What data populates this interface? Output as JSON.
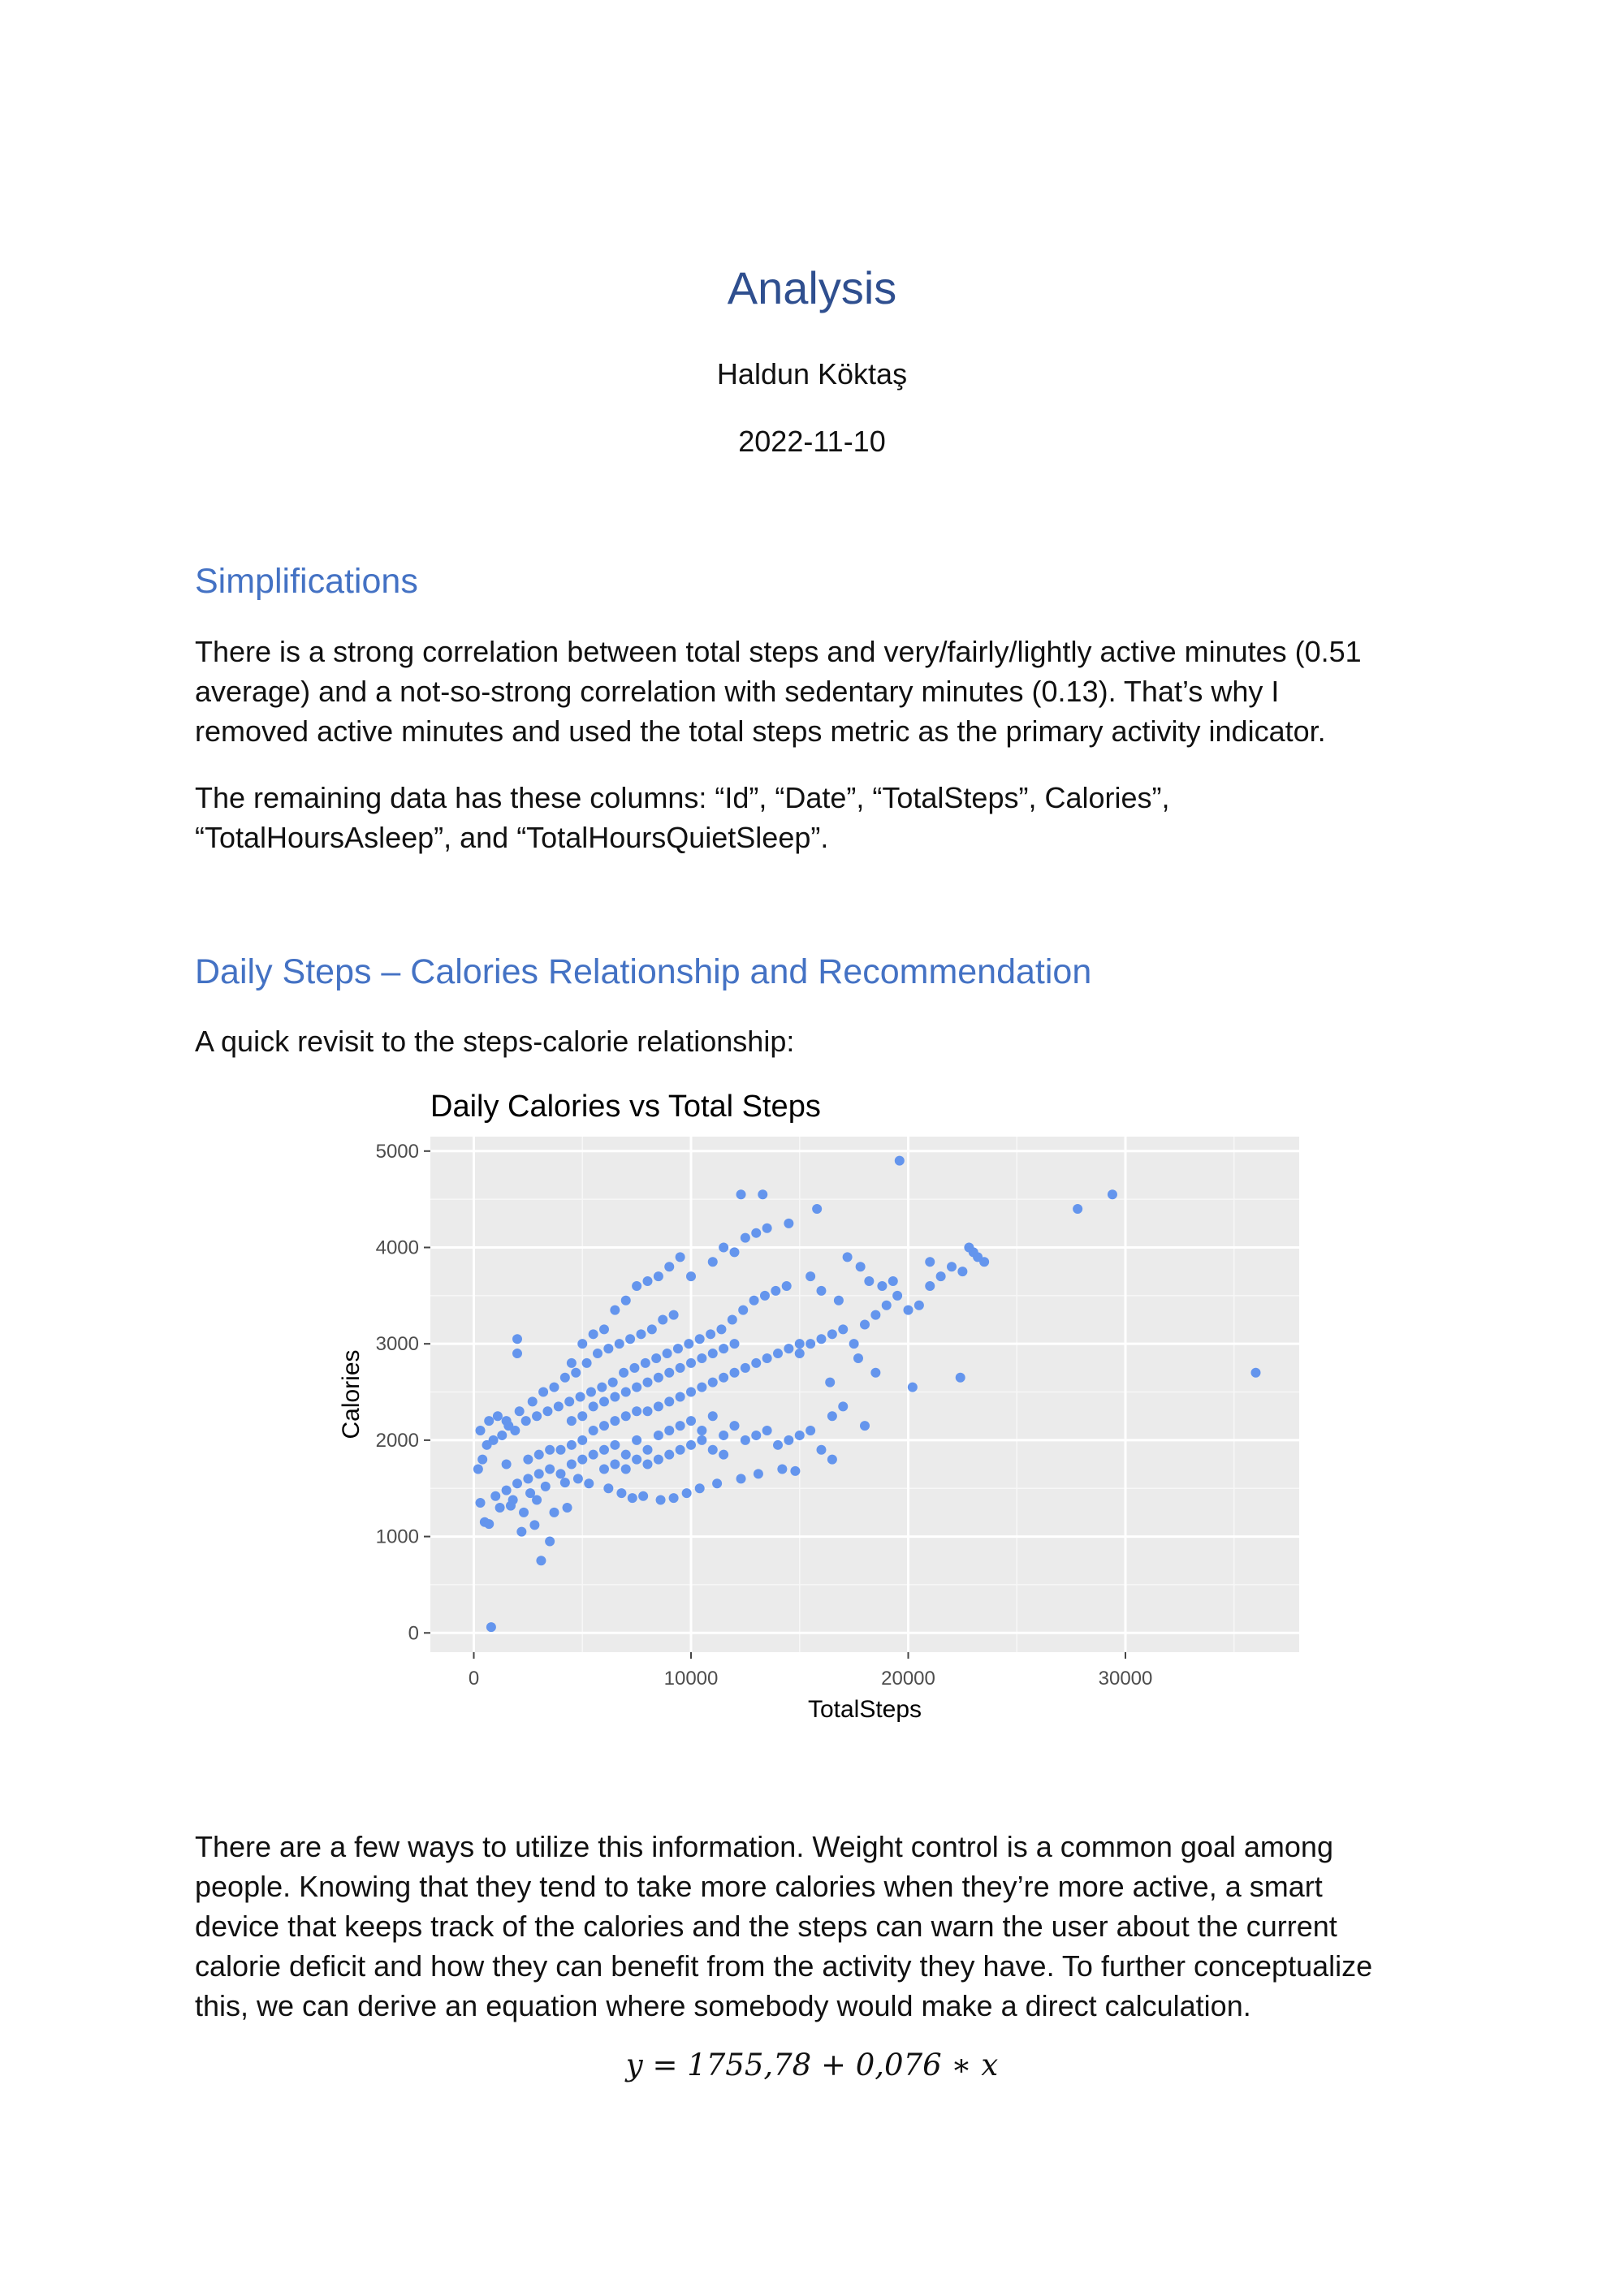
{
  "document": {
    "title": "Analysis",
    "author": "Haldun Köktaş",
    "date": "2022-11-10"
  },
  "section_simplifications": {
    "heading": "Simplifications",
    "para1_lines": [
      "There is a strong correlation between total steps and very/fairly/lightly active minutes (0.51",
      "average) and a not-so-strong correlation with sedentary minutes (0.13). That’s why I",
      "removed active minutes and used the total steps metric as the primary activity indicator."
    ],
    "para2_lines": [
      "The remaining data has these columns: “Id”, “Date”, “TotalSteps”, Calories”,",
      "“TotalHoursAsleep”, and “TotalHoursQuietSleep”."
    ]
  },
  "section_steps": {
    "heading": "Daily Steps – Calories Relationship and Recommendation",
    "intro": "A quick revisit to the steps-calorie relationship:",
    "para_lines": [
      "There are a few ways to utilize this information. Weight control is a common goal among",
      "people. Knowing that they tend to take more calories when they’re more active, a smart",
      "device that keeps track of the calories and the steps can warn the user about the current",
      "calorie deficit and how they can benefit from the activity they have. To further conceptualize",
      "this, we can derive an equation where somebody would make a direct calculation."
    ],
    "equation": "y = 1755,78 + 0,076 ∗ x"
  },
  "chart_data": {
    "type": "scatter",
    "title": "Daily Calories vs Total Steps",
    "xlabel": "TotalSteps",
    "ylabel": "Calories",
    "xlim": [
      -2000,
      38000
    ],
    "ylim": [
      -200,
      5150
    ],
    "xticks": [
      0,
      10000,
      20000,
      30000
    ],
    "yticks": [
      0,
      1000,
      2000,
      3000,
      4000,
      5000
    ],
    "grid": true,
    "point_color": "#6495ed",
    "panel_color": "#ebebeb",
    "points": [
      [
        800,
        60
      ],
      [
        3100,
        750
      ],
      [
        3500,
        950
      ],
      [
        2200,
        1050
      ],
      [
        2800,
        1120
      ],
      [
        500,
        1150
      ],
      [
        700,
        1130
      ],
      [
        300,
        1350
      ],
      [
        1000,
        1420
      ],
      [
        1500,
        1480
      ],
      [
        2000,
        1550
      ],
      [
        2500,
        1600
      ],
      [
        3000,
        1650
      ],
      [
        3500,
        1700
      ],
      [
        4000,
        1650
      ],
      [
        4500,
        1750
      ],
      [
        5000,
        1800
      ],
      [
        5500,
        1850
      ],
      [
        6000,
        1900
      ],
      [
        6500,
        1950
      ],
      [
        7000,
        1850
      ],
      [
        7500,
        2000
      ],
      [
        8000,
        1900
      ],
      [
        8500,
        2050
      ],
      [
        9000,
        2100
      ],
      [
        9500,
        2150
      ],
      [
        10000,
        2200
      ],
      [
        10500,
        2100
      ],
      [
        11000,
        2250
      ],
      [
        11500,
        2050
      ],
      [
        12000,
        2150
      ],
      [
        12500,
        2000
      ],
      [
        13000,
        2050
      ],
      [
        13500,
        2100
      ],
      [
        14000,
        1950
      ],
      [
        14500,
        2000
      ],
      [
        15000,
        2050
      ],
      [
        15500,
        2100
      ],
      [
        16000,
        1900
      ],
      [
        16500,
        1800
      ],
      [
        1200,
        1300
      ],
      [
        1800,
        1380
      ],
      [
        2600,
        1450
      ],
      [
        3300,
        1520
      ],
      [
        4200,
        1560
      ],
      [
        4800,
        1600
      ],
      [
        5300,
        1550
      ],
      [
        6200,
        1500
      ],
      [
        6800,
        1450
      ],
      [
        7300,
        1400
      ],
      [
        7800,
        1420
      ],
      [
        8600,
        1380
      ],
      [
        9200,
        1400
      ],
      [
        9800,
        1450
      ],
      [
        10400,
        1500
      ],
      [
        11200,
        1550
      ],
      [
        12300,
        1600
      ],
      [
        13100,
        1650
      ],
      [
        14200,
        1700
      ],
      [
        14800,
        1680
      ],
      [
        3700,
        1250
      ],
      [
        4300,
        1300
      ],
      [
        2900,
        1380
      ],
      [
        2300,
        1250
      ],
      [
        1700,
        1320
      ],
      [
        200,
        1700
      ],
      [
        400,
        1800
      ],
      [
        600,
        1950
      ],
      [
        900,
        2000
      ],
      [
        1300,
        2050
      ],
      [
        1600,
        2150
      ],
      [
        1900,
        2100
      ],
      [
        2400,
        2200
      ],
      [
        2900,
        2250
      ],
      [
        3400,
        2300
      ],
      [
        3900,
        2350
      ],
      [
        4400,
        2400
      ],
      [
        4900,
        2450
      ],
      [
        5400,
        2500
      ],
      [
        5900,
        2550
      ],
      [
        6400,
        2600
      ],
      [
        6900,
        2700
      ],
      [
        7400,
        2750
      ],
      [
        7900,
        2800
      ],
      [
        8400,
        2850
      ],
      [
        8900,
        2900
      ],
      [
        9400,
        2950
      ],
      [
        9900,
        3000
      ],
      [
        10400,
        3050
      ],
      [
        10900,
        3100
      ],
      [
        11400,
        3150
      ],
      [
        11900,
        3250
      ],
      [
        12400,
        3350
      ],
      [
        12900,
        3450
      ],
      [
        13400,
        3500
      ],
      [
        13900,
        3550
      ],
      [
        14400,
        3600
      ],
      [
        300,
        2100
      ],
      [
        700,
        2200
      ],
      [
        1100,
        2250
      ],
      [
        1500,
        2200
      ],
      [
        2100,
        2300
      ],
      [
        2700,
        2400
      ],
      [
        3200,
        2500
      ],
      [
        3700,
        2550
      ],
      [
        4200,
        2650
      ],
      [
        4700,
        2700
      ],
      [
        5200,
        2800
      ],
      [
        5700,
        2900
      ],
      [
        6200,
        2950
      ],
      [
        6700,
        3000
      ],
      [
        7200,
        3050
      ],
      [
        7700,
        3100
      ],
      [
        8200,
        3150
      ],
      [
        8700,
        3250
      ],
      [
        9200,
        3300
      ],
      [
        2000,
        2900
      ],
      [
        2000,
        3050
      ],
      [
        4500,
        2800
      ],
      [
        5000,
        3000
      ],
      [
        5500,
        3100
      ],
      [
        6000,
        3150
      ],
      [
        6500,
        3350
      ],
      [
        7000,
        3450
      ],
      [
        7500,
        3600
      ],
      [
        8000,
        3650
      ],
      [
        8500,
        3700
      ],
      [
        9000,
        3800
      ],
      [
        9500,
        3900
      ],
      [
        10000,
        3700
      ],
      [
        11000,
        3850
      ],
      [
        11500,
        4000
      ],
      [
        12000,
        3950
      ],
      [
        12500,
        4100
      ],
      [
        13000,
        4150
      ],
      [
        13500,
        4200
      ],
      [
        12300,
        4550
      ],
      [
        13300,
        4550
      ],
      [
        14500,
        4250
      ],
      [
        15800,
        4400
      ],
      [
        19600,
        4900
      ],
      [
        15000,
        2900
      ],
      [
        15500,
        3000
      ],
      [
        16000,
        3050
      ],
      [
        16500,
        3100
      ],
      [
        17000,
        3150
      ],
      [
        17500,
        3000
      ],
      [
        18000,
        3200
      ],
      [
        18500,
        3300
      ],
      [
        19000,
        3400
      ],
      [
        19500,
        3500
      ],
      [
        20000,
        3350
      ],
      [
        20500,
        3400
      ],
      [
        21000,
        3600
      ],
      [
        21500,
        3700
      ],
      [
        22000,
        3800
      ],
      [
        22500,
        3750
      ],
      [
        23000,
        3950
      ],
      [
        23500,
        3850
      ],
      [
        17200,
        3900
      ],
      [
        17800,
        3800
      ],
      [
        18200,
        3650
      ],
      [
        18800,
        3600
      ],
      [
        19300,
        3650
      ],
      [
        21000,
        3850
      ],
      [
        22800,
        4000
      ],
      [
        23200,
        3900
      ],
      [
        15500,
        3700
      ],
      [
        16000,
        3550
      ],
      [
        16800,
        3450
      ],
      [
        17000,
        2350
      ],
      [
        16500,
        2250
      ],
      [
        18000,
        2150
      ],
      [
        20200,
        2550
      ],
      [
        22400,
        2650
      ],
      [
        16400,
        2600
      ],
      [
        18500,
        2700
      ],
      [
        17700,
        2850
      ],
      [
        8000,
        2300
      ],
      [
        8500,
        2350
      ],
      [
        9000,
        2400
      ],
      [
        9500,
        2450
      ],
      [
        10000,
        2500
      ],
      [
        10500,
        2550
      ],
      [
        11000,
        2600
      ],
      [
        11500,
        2650
      ],
      [
        12000,
        2700
      ],
      [
        12500,
        2750
      ],
      [
        13000,
        2800
      ],
      [
        13500,
        2850
      ],
      [
        14000,
        2900
      ],
      [
        14500,
        2950
      ],
      [
        15000,
        3000
      ],
      [
        5000,
        2000
      ],
      [
        5500,
        2100
      ],
      [
        6000,
        2150
      ],
      [
        6500,
        2200
      ],
      [
        7000,
        2250
      ],
      [
        7500,
        2300
      ],
      [
        4000,
        1900
      ],
      [
        4500,
        1950
      ],
      [
        3000,
        1850
      ],
      [
        3500,
        1900
      ],
      [
        2500,
        1800
      ],
      [
        1500,
        1750
      ],
      [
        6000,
        1700
      ],
      [
        6500,
        1750
      ],
      [
        7000,
        1700
      ],
      [
        7500,
        1800
      ],
      [
        8000,
        1750
      ],
      [
        8500,
        1800
      ],
      [
        9000,
        1850
      ],
      [
        9500,
        1900
      ],
      [
        10000,
        1950
      ],
      [
        10500,
        2000
      ],
      [
        11000,
        1900
      ],
      [
        11500,
        1850
      ],
      [
        4500,
        2200
      ],
      [
        5000,
        2250
      ],
      [
        5500,
        2350
      ],
      [
        6000,
        2400
      ],
      [
        6500,
        2450
      ],
      [
        7000,
        2500
      ],
      [
        7500,
        2550
      ],
      [
        8000,
        2600
      ],
      [
        8500,
        2650
      ],
      [
        9000,
        2700
      ],
      [
        9500,
        2750
      ],
      [
        10000,
        2800
      ],
      [
        10500,
        2850
      ],
      [
        11000,
        2900
      ],
      [
        11500,
        2950
      ],
      [
        12000,
        3000
      ],
      [
        27800,
        4400
      ],
      [
        29400,
        4550
      ],
      [
        36000,
        2700
      ]
    ]
  }
}
